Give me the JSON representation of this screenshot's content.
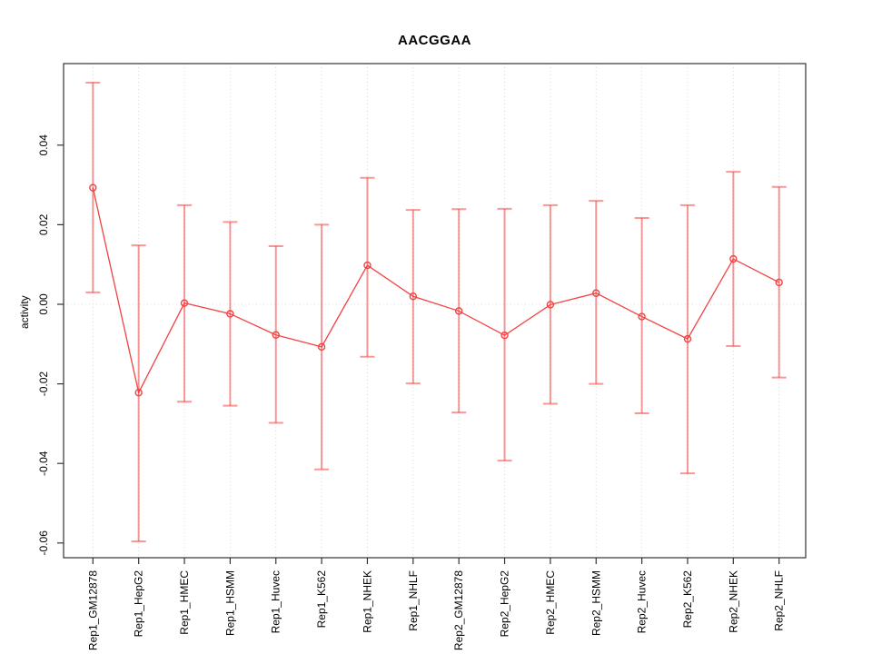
{
  "title": "AACGGAA",
  "chart_data": {
    "type": "line",
    "title": "AACGGAA",
    "xlabel": "",
    "ylabel": "activity",
    "legend_position": "none",
    "grid": {
      "vertical_dotted_per_category": true,
      "horizontal_dotted_at_zero": true
    },
    "ylim": [
      -0.0637,
      0.0605
    ],
    "y_ticks": [
      {
        "value": 0.04,
        "label": "0.04"
      },
      {
        "value": 0.02,
        "label": "0.02"
      },
      {
        "value": 0.0,
        "label": "0.00"
      },
      {
        "value": -0.02,
        "label": "-0.02"
      },
      {
        "value": -0.04,
        "label": "-0.04"
      },
      {
        "value": -0.06,
        "label": "-0.06"
      }
    ],
    "categories": [
      "Rep1_GM12878",
      "Rep1_HepG2",
      "Rep1_HMEC",
      "Rep1_HSMM",
      "Rep1_Huvec",
      "Rep1_K562",
      "Rep1_NHEK",
      "Rep1_NHLF",
      "Rep2_GM12878",
      "Rep2_HepG2",
      "Rep2_HMEC",
      "Rep2_HSMM",
      "Rep2_Huvec",
      "Rep2_K562",
      "Rep2_NHEK",
      "Rep2_NHLF"
    ],
    "series": [
      {
        "name": "activity",
        "values": [
          0.0293,
          -0.0222,
          0.0003,
          -0.0024,
          -0.0077,
          -0.0107,
          0.0098,
          0.002,
          -0.0017,
          -0.0078,
          -0.0001,
          0.0028,
          -0.0031,
          -0.0087,
          0.0114,
          0.0055
        ],
        "lower": [
          0.003,
          -0.0596,
          -0.0245,
          -0.0255,
          -0.0298,
          -0.0415,
          -0.0132,
          -0.0199,
          -0.0272,
          -0.0393,
          -0.025,
          -0.02,
          -0.0274,
          -0.0425,
          -0.0105,
          -0.0184
        ],
        "upper": [
          0.0557,
          0.0148,
          0.0249,
          0.0207,
          0.0146,
          0.02,
          0.0318,
          0.0237,
          0.0239,
          0.024,
          0.0249,
          0.026,
          0.0217,
          0.0249,
          0.0333,
          0.0295
        ]
      }
    ],
    "colors": {
      "series_line": "#f44141",
      "error_bar": "#f44141",
      "error_bar_opacity": 0.55,
      "grid_line": "#d8d8d8",
      "axis": "#333333",
      "text": "#000000",
      "background": "#ffffff"
    }
  }
}
